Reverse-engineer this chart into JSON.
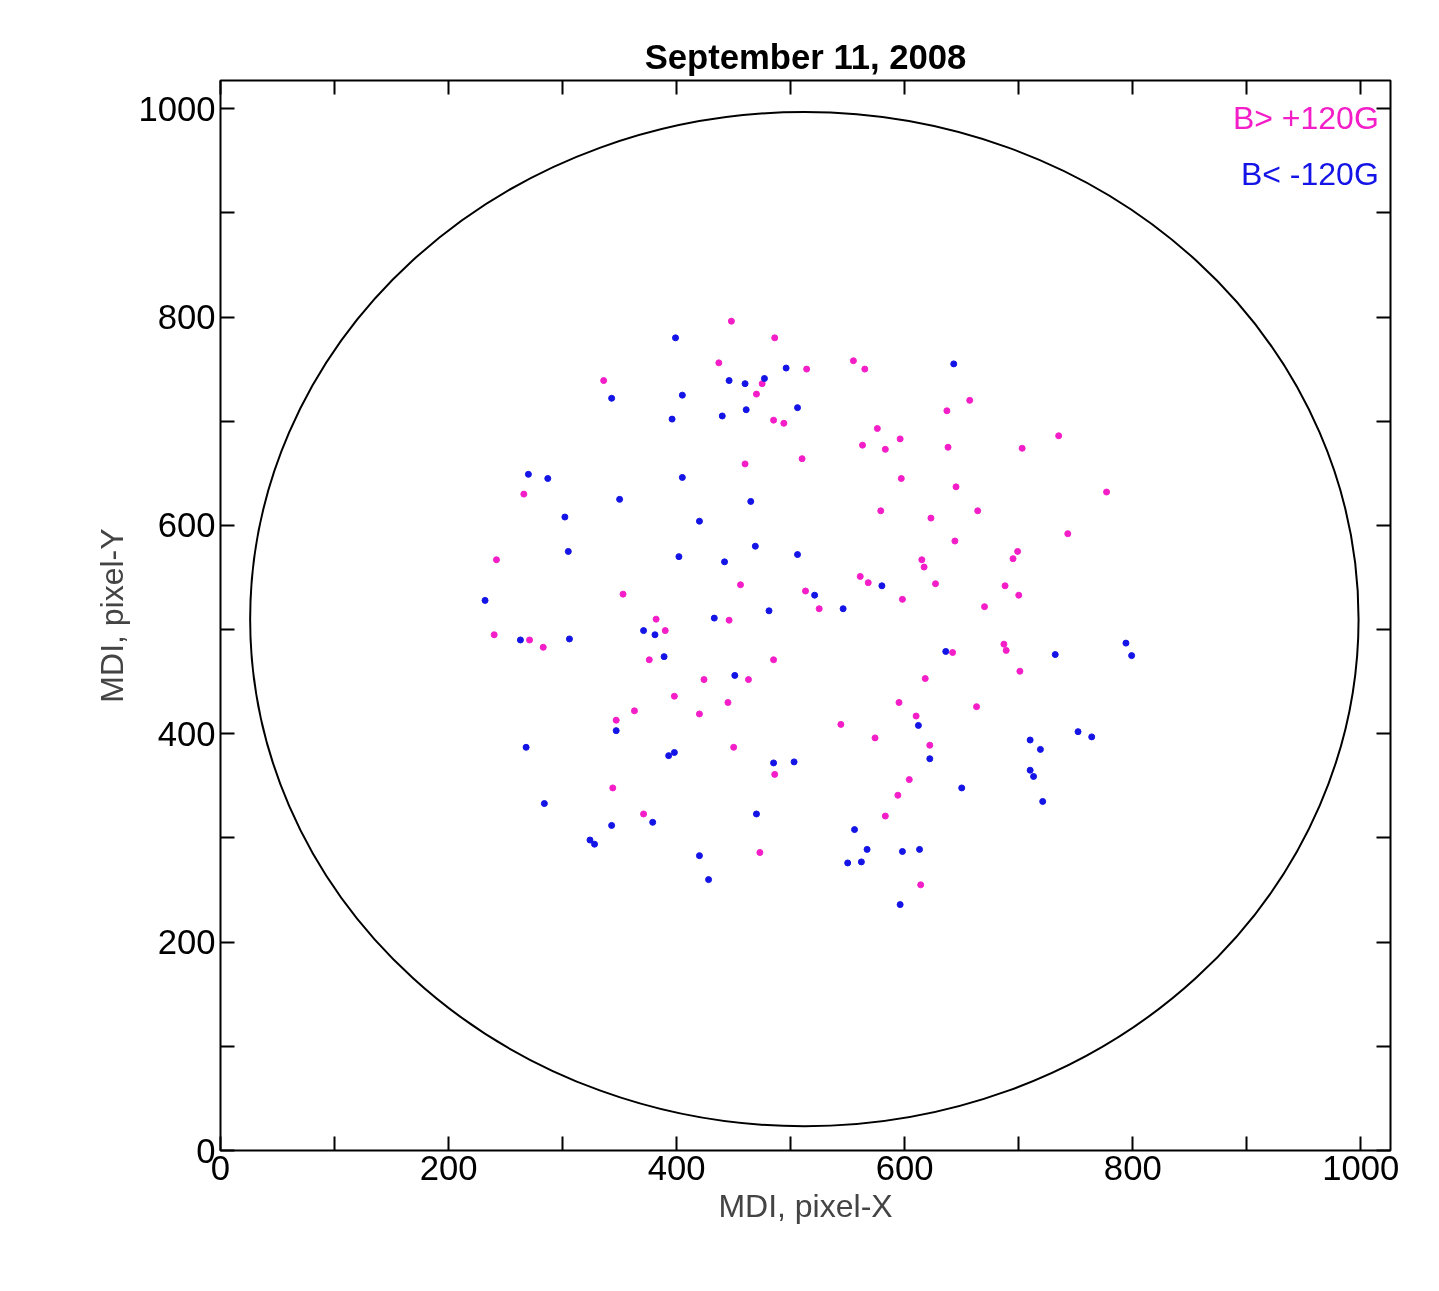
{
  "chart_data": {
    "type": "scatter",
    "title": "September 11, 2008",
    "xlabel": "MDI, pixel-X",
    "ylabel": "MDI, pixel-Y",
    "xlim": [
      0,
      1026
    ],
    "ylim": [
      0,
      1027
    ],
    "xticks": [
      0,
      {
        "value": 100,
        "label": null
      },
      200,
      {
        "value": 300,
        "label": null
      },
      400,
      {
        "value": 500,
        "label": null
      },
      600,
      {
        "value": 700,
        "label": null
      },
      800,
      {
        "value": 900,
        "label": null
      },
      1000
    ],
    "yticks": [
      0,
      {
        "value": 100,
        "label": null
      },
      200,
      {
        "value": 300,
        "label": null
      },
      400,
      {
        "value": 500,
        "label": null
      },
      600,
      {
        "value": 700,
        "label": null
      },
      800,
      {
        "value": 900,
        "label": null
      },
      1000
    ],
    "grid": false,
    "legend": "top right",
    "marker": "circle",
    "series": [
      {
        "name": "B> +120G",
        "color": "#f41ec8",
        "x": [
          448,
          486,
          437,
          514,
          336,
          475,
          470,
          485,
          494,
          460,
          510,
          266,
          242,
          456,
          513,
          353,
          555,
          565,
          657,
          637,
          576,
          596,
          563,
          583,
          638,
          703,
          735,
          597,
          645,
          777,
          579,
          623,
          664,
          743,
          644,
          699,
          695,
          615,
          617,
          561,
          568,
          627,
          688,
          700,
          525,
          598,
          670,
          382,
          390,
          446,
          240,
          271,
          283,
          376,
          485,
          424,
          463,
          398,
          445,
          363,
          420,
          347,
          450,
          486,
          344,
          371,
          473,
          642,
          687,
          689,
          701,
          618,
          595,
          663,
          610,
          544,
          574,
          622,
          604,
          594,
          583,
          614
        ],
        "values": [
          796,
          780,
          756,
          750,
          739,
          736,
          726,
          701,
          698,
          659,
          664,
          630,
          567,
          543,
          537,
          534,
          758,
          750,
          720,
          710,
          693,
          683,
          677,
          673,
          675,
          674,
          686,
          645,
          637,
          632,
          614,
          607,
          614,
          592,
          585,
          575,
          568,
          567,
          560,
          551,
          545,
          544,
          542,
          533,
          520,
          529,
          522,
          510,
          499,
          509,
          495,
          490,
          483,
          471,
          471,
          452,
          452,
          436,
          430,
          422,
          419,
          413,
          387,
          361,
          348,
          323,
          286,
          478,
          486,
          480,
          460,
          453,
          430,
          426,
          417,
          409,
          396,
          389,
          356,
          341,
          321,
          255
        ]
      },
      {
        "name": "B< -120G",
        "color": "#1414e6",
        "x": [
          399,
          496,
          343,
          446,
          460,
          477,
          405,
          396,
          440,
          461,
          506,
          270,
          287,
          350,
          405,
          465,
          302,
          420,
          305,
          402,
          442,
          469,
          506,
          232,
          481,
          643,
          580,
          521,
          546,
          433,
          263,
          306,
          371,
          381,
          389,
          451,
          347,
          268,
          393,
          398,
          485,
          503,
          284,
          343,
          379,
          470,
          324,
          328,
          420,
          428,
          636,
          732,
          794,
          799,
          612,
          622,
          710,
          719,
          752,
          764,
          710,
          713,
          721,
          650,
          556,
          567,
          598,
          613,
          550,
          562,
          596
        ],
        "values": [
          780,
          751,
          722,
          739,
          736,
          741,
          725,
          702,
          705,
          711,
          713,
          649,
          645,
          625,
          646,
          623,
          608,
          604,
          575,
          570,
          565,
          580,
          572,
          528,
          518,
          755,
          542,
          533,
          520,
          511,
          490,
          491,
          499,
          495,
          474,
          456,
          403,
          387,
          379,
          382,
          372,
          373,
          333,
          312,
          315,
          323,
          298,
          294,
          283,
          260,
          479,
          476,
          487,
          475,
          408,
          376,
          394,
          385,
          402,
          397,
          365,
          359,
          335,
          348,
          308,
          289,
          287,
          289,
          276,
          277,
          236
        ]
      }
    ]
  }
}
